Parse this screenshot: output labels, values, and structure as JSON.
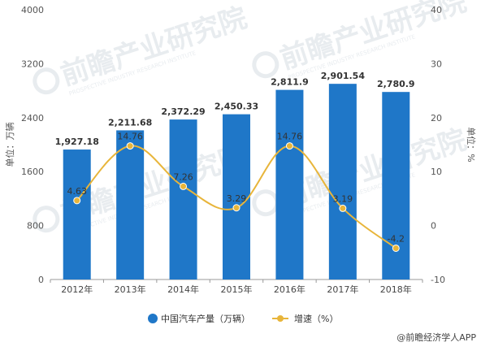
{
  "chart_data": {
    "type": "bar",
    "categories": [
      "2012年",
      "2013年",
      "2014年",
      "2015年",
      "2016年",
      "2017年",
      "2018年"
    ],
    "series": [
      {
        "name": "中国汽车产量（万辆）",
        "type": "bar",
        "axis": "left",
        "values": [
          1927.18,
          2211.68,
          2372.29,
          2450.33,
          2811.9,
          2901.54,
          2780.9
        ],
        "labels": [
          "1,927.18",
          "2,211.68",
          "2,372.29",
          "2,450.33",
          "2,811.9",
          "2,901.54",
          "2,780.9"
        ],
        "color": "#1f77c8"
      },
      {
        "name": "增速（%）",
        "type": "line",
        "axis": "right",
        "values": [
          4.63,
          14.76,
          7.26,
          3.29,
          14.76,
          3.19,
          -4.2
        ],
        "labels": [
          "4.63",
          "14.76",
          "7.26",
          "3.29",
          "14.76",
          "3.19",
          "-4.2"
        ],
        "color": "#e8b53a"
      }
    ],
    "ylabel": "单位：万辆",
    "y2label": "单位：%",
    "ylim": [
      0,
      4000
    ],
    "yticks": [
      "0",
      "800",
      "1600",
      "2400",
      "3200",
      "4000"
    ],
    "y2lim": [
      -10,
      40
    ],
    "y2ticks": [
      "-10",
      "0",
      "10",
      "20",
      "30",
      "40"
    ],
    "grid": false,
    "legend_position": "bottom"
  },
  "watermark": {
    "brand": "前瞻产业研究院",
    "tagline": "PROSPECTIVE INDUSTRY RESEARCH INSTITUTE"
  },
  "footer": {
    "source": "@前瞻经济学人APP"
  }
}
